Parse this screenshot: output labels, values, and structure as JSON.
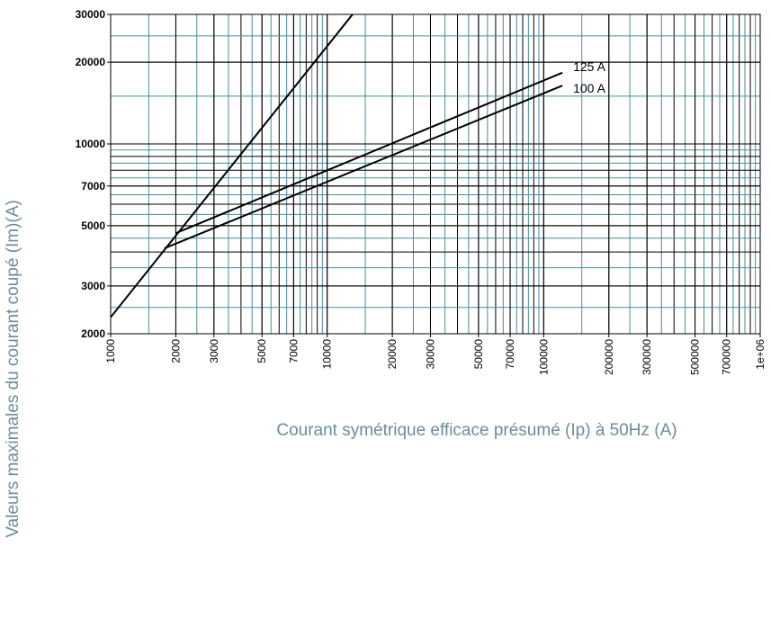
{
  "chart_data": {
    "type": "line",
    "xlabel": "Courant symétrique efficace présumé (Ip) à 50Hz (A)",
    "ylabel": "Valeurs maximales du courant coupé (Im)(A)",
    "xscale": "log",
    "yscale": "log",
    "grid": true,
    "xlim": [
      1000,
      1000000
    ],
    "ylim": [
      2000,
      30000
    ],
    "xticks": [
      1000,
      2000,
      3000,
      5000,
      7000,
      10000,
      20000,
      30000,
      50000,
      70000,
      100000,
      200000,
      300000,
      500000,
      700000,
      {
        "value": 1000000,
        "label": "1e+06"
      }
    ],
    "yticks": [
      2000,
      3000,
      5000,
      7000,
      10000,
      20000,
      30000
    ],
    "series": [
      {
        "color": "#000000",
        "x": [
          1000,
          13100
        ],
        "values": [
          2300,
          30000
        ]
      },
      {
        "name": "125 A",
        "color": "#000000",
        "x": [
          2010,
          122000
        ],
        "values": [
          4700,
          18300
        ]
      },
      {
        "name": "100 A",
        "color": "#000000",
        "x": [
          1775,
          122000
        ],
        "values": [
          4130,
          16400
        ]
      }
    ]
  }
}
